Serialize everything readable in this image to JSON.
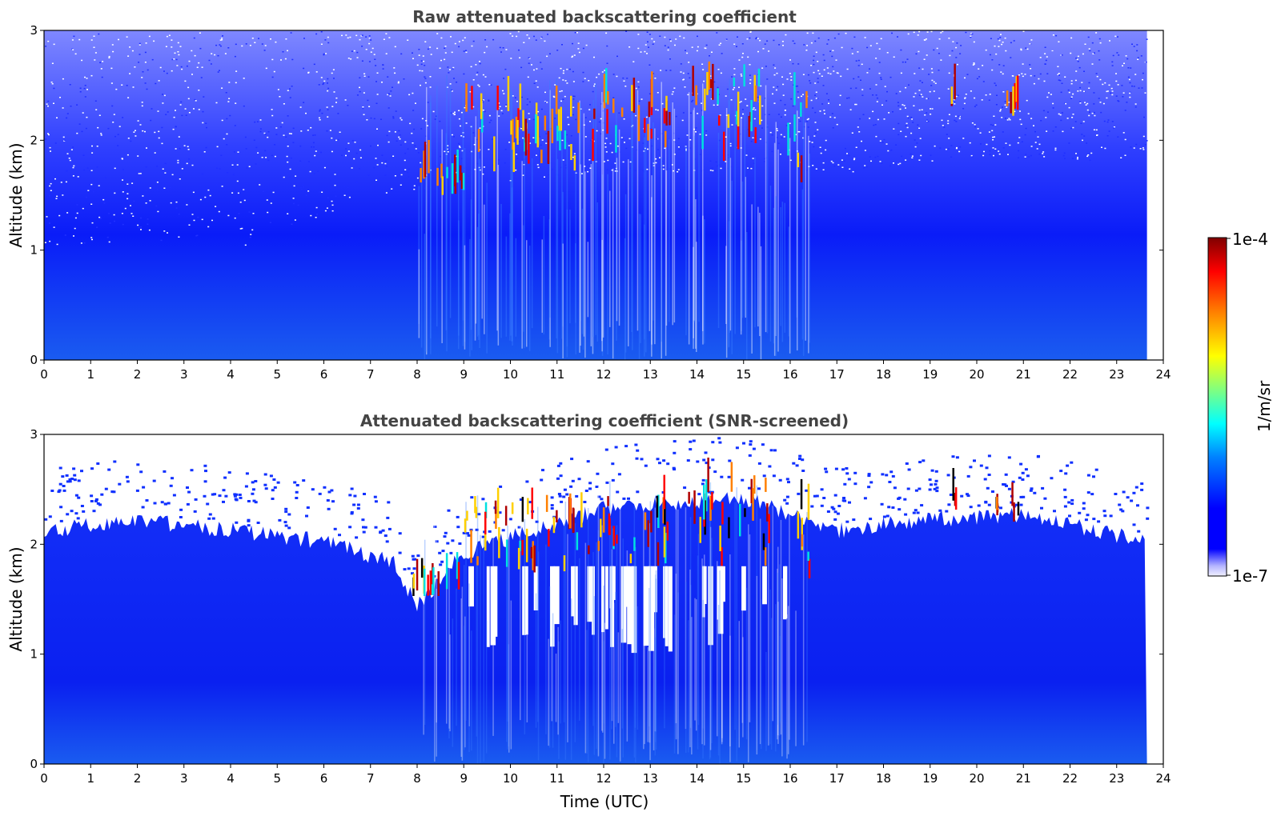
{
  "chart_data": [
    {
      "type": "heatmap",
      "title": "Raw attenuated backscattering coefficient",
      "xlabel": "",
      "ylabel": "Altitude (km)",
      "xlim": [
        0,
        24
      ],
      "ylim": [
        0,
        3
      ],
      "x_ticks": [
        "0",
        "1",
        "2",
        "3",
        "4",
        "5",
        "6",
        "7",
        "8",
        "9",
        "10",
        "11",
        "12",
        "13",
        "14",
        "15",
        "16",
        "17",
        "18",
        "19",
        "20",
        "21",
        "22",
        "23",
        "24"
      ],
      "y_ticks": [
        "0",
        "1",
        "2",
        "3"
      ],
      "data_end_time": 23.65,
      "screened": false,
      "layers": {
        "boundary_layer_top_km": [
          [
            0,
            1.05
          ],
          [
            3,
            1.1
          ],
          [
            4,
            1.0
          ],
          [
            6,
            1.3
          ],
          [
            7,
            1.5
          ],
          [
            9,
            1.6
          ],
          [
            13,
            1.7
          ],
          [
            16,
            1.75
          ],
          [
            17,
            1.7
          ],
          [
            20,
            1.85
          ],
          [
            23.65,
            1.8
          ]
        ],
        "cloud_segments": [
          {
            "t0": 7.9,
            "t1": 9.0,
            "base_km": 1.5,
            "top_km": 1.8
          },
          {
            "t0": 9.0,
            "t1": 12.0,
            "base_km": 1.7,
            "top_km": 2.4
          },
          {
            "t0": 12.0,
            "t1": 13.4,
            "base_km": 1.8,
            "top_km": 2.5
          },
          {
            "t0": 13.8,
            "t1": 15.6,
            "base_km": 1.8,
            "top_km": 2.6
          },
          {
            "t0": 15.9,
            "t1": 16.4,
            "base_km": 1.6,
            "top_km": 2.45
          },
          {
            "t0": 19.4,
            "t1": 19.6,
            "base_km": 2.3,
            "top_km": 2.5
          },
          {
            "t0": 20.4,
            "t1": 20.9,
            "base_km": 2.2,
            "top_km": 2.45
          }
        ]
      }
    },
    {
      "type": "heatmap",
      "title": "Attenuated backscattering coefficient (SNR-screened)",
      "xlabel": "Time (UTC)",
      "ylabel": "Altitude (km)",
      "xlim": [
        0,
        24
      ],
      "ylim": [
        0,
        3
      ],
      "x_ticks": [
        "0",
        "1",
        "2",
        "3",
        "4",
        "5",
        "6",
        "7",
        "8",
        "9",
        "10",
        "11",
        "12",
        "13",
        "14",
        "15",
        "16",
        "17",
        "18",
        "19",
        "20",
        "21",
        "22",
        "23",
        "24"
      ],
      "y_ticks": [
        "0",
        "1",
        "2",
        "3"
      ],
      "data_end_time": 23.65,
      "screened": true,
      "layers": {
        "signal_top_km": [
          [
            0,
            2.2
          ],
          [
            2,
            2.3
          ],
          [
            4,
            2.2
          ],
          [
            6,
            2.1
          ],
          [
            7.5,
            1.9
          ],
          [
            8,
            1.5
          ],
          [
            9,
            2.0
          ],
          [
            12,
            2.4
          ],
          [
            15,
            2.5
          ],
          [
            16.4,
            2.3
          ],
          [
            17,
            2.2
          ],
          [
            19,
            2.3
          ],
          [
            21,
            2.35
          ],
          [
            23.65,
            2.1
          ]
        ],
        "cloud_segments": [
          {
            "t0": 7.9,
            "t1": 9.0,
            "base_km": 1.5,
            "top_km": 1.8
          },
          {
            "t0": 9.0,
            "t1": 12.0,
            "base_km": 1.7,
            "top_km": 2.4
          },
          {
            "t0": 12.0,
            "t1": 13.4,
            "base_km": 1.8,
            "top_km": 2.5
          },
          {
            "t0": 13.8,
            "t1": 15.6,
            "base_km": 1.8,
            "top_km": 2.6
          },
          {
            "t0": 15.9,
            "t1": 16.4,
            "base_km": 1.6,
            "top_km": 2.45
          },
          {
            "t0": 19.4,
            "t1": 19.6,
            "base_km": 2.3,
            "top_km": 2.5
          },
          {
            "t0": 20.4,
            "t1": 20.9,
            "base_km": 2.2,
            "top_km": 2.45
          }
        ]
      }
    }
  ],
  "colorbar": {
    "max_label": "1e-4",
    "min_label": "1e-7",
    "unit_label": "1/m/sr",
    "colormap": "jet",
    "scale": "log"
  }
}
